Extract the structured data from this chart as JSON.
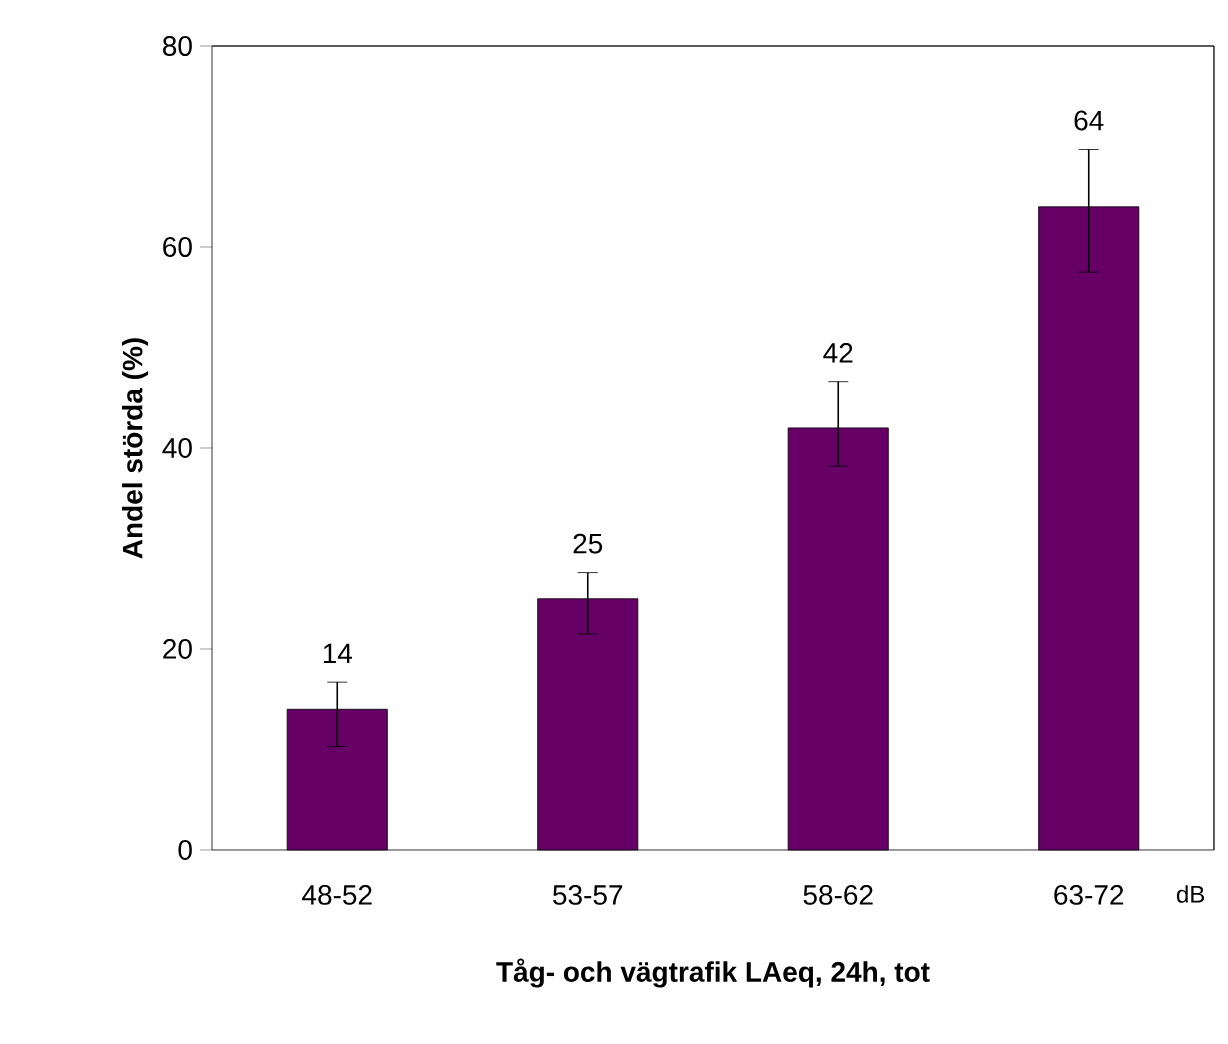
{
  "chart_data": {
    "type": "bar",
    "xlabel": "**Tåg- och vägtrafik LAeq, 24h, tot**",
    "ylabel": "**Andel störda (%)**",
    "categories": [
      "48-52",
      "53-57",
      "58-62",
      "63-72"
    ],
    "values": [
      14,
      25,
      42,
      64
    ],
    "color": "#660066",
    "errors": [
      [
        10.3,
        16.7
      ],
      [
        21.5,
        27.6
      ],
      [
        38.2,
        46.6
      ],
      [
        57.5,
        69.7
      ]
    ],
    "data_labels": true,
    "ylim": [
      0,
      80
    ],
    "yticks": [
      0,
      20,
      40,
      60,
      80
    ],
    "annotations": [
      "dB"
    ]
  }
}
